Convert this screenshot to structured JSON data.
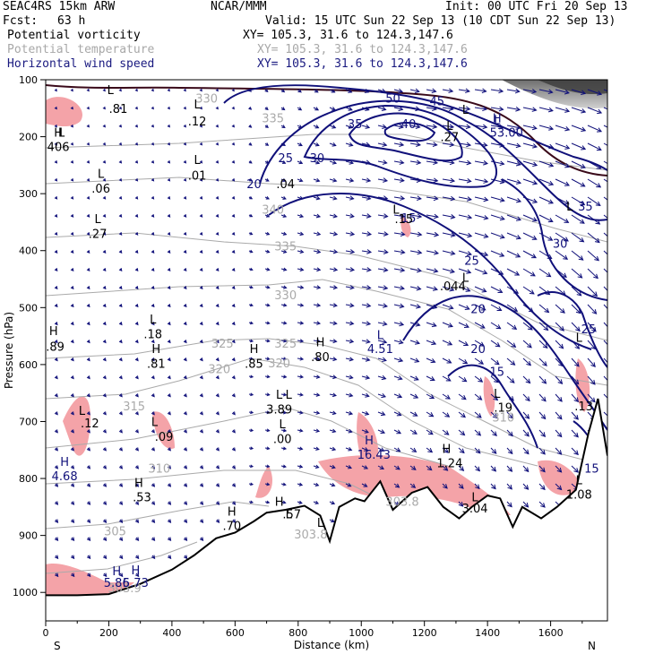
{
  "header": {
    "model": "SEAC4RS 15km ARW",
    "center": "NCAR/MMM",
    "init": "Init: 00 UTC Fri 20 Sep 13",
    "fcst_label": "Fcst:",
    "fcst_value": "63 h",
    "valid": "Valid: 15 UTC Sun 22 Sep 13 (10 CDT Sun 22 Sep 13)",
    "fields": [
      {
        "name": "Potential vorticity",
        "xy": "XY= 105.3, 31.6 to 124.3,147.6",
        "color": "#000000"
      },
      {
        "name": "Potential temperature",
        "xy": "XY= 105.3, 31.6 to 124.3,147.6",
        "color": "#a8a8a8"
      },
      {
        "name": "Horizontal wind speed",
        "xy": "XY= 105.3, 31.6 to 124.3,147.6",
        "color": "#1a1a80"
      }
    ]
  },
  "chart_data": {
    "type": "cross-section",
    "xlabel": "Distance (km)",
    "ylabel": "Pressure (hPa)",
    "xlim": [
      0,
      1780
    ],
    "ylim": [
      1050,
      100
    ],
    "x_ticks": [
      "0",
      "200",
      "400",
      "600",
      "800",
      "1000",
      "1200",
      "1400",
      "1600"
    ],
    "y_ticks": [
      "100",
      "200",
      "300",
      "400",
      "500",
      "600",
      "700",
      "800",
      "900",
      "1000"
    ],
    "x_end_labels": {
      "left": "S",
      "right": "N"
    },
    "colors": {
      "theta": "#aaaaaa",
      "wind": "#10107a",
      "pv_fill": "#f4a3a8",
      "terrain": "#000000"
    },
    "terrain": [
      {
        "x": 0,
        "p": 1005
      },
      {
        "x": 100,
        "p": 1005
      },
      {
        "x": 200,
        "p": 1003
      },
      {
        "x": 300,
        "p": 985
      },
      {
        "x": 400,
        "p": 960
      },
      {
        "x": 470,
        "p": 935
      },
      {
        "x": 540,
        "p": 905
      },
      {
        "x": 600,
        "p": 895
      },
      {
        "x": 660,
        "p": 875
      },
      {
        "x": 700,
        "p": 860
      },
      {
        "x": 760,
        "p": 855
      },
      {
        "x": 820,
        "p": 848
      },
      {
        "x": 870,
        "p": 865
      },
      {
        "x": 900,
        "p": 910
      },
      {
        "x": 930,
        "p": 850
      },
      {
        "x": 980,
        "p": 835
      },
      {
        "x": 1010,
        "p": 840
      },
      {
        "x": 1060,
        "p": 805
      },
      {
        "x": 1100,
        "p": 855
      },
      {
        "x": 1160,
        "p": 825
      },
      {
        "x": 1210,
        "p": 815
      },
      {
        "x": 1260,
        "p": 850
      },
      {
        "x": 1310,
        "p": 870
      },
      {
        "x": 1350,
        "p": 850
      },
      {
        "x": 1400,
        "p": 830
      },
      {
        "x": 1440,
        "p": 835
      },
      {
        "x": 1480,
        "p": 885
      },
      {
        "x": 1510,
        "p": 850
      },
      {
        "x": 1570,
        "p": 870
      },
      {
        "x": 1620,
        "p": 850
      },
      {
        "x": 1680,
        "p": 820
      },
      {
        "x": 1720,
        "p": 720
      },
      {
        "x": 1750,
        "p": 660
      },
      {
        "x": 1780,
        "p": 760
      }
    ],
    "theta_labels": [
      {
        "v": "330",
        "x": 510,
        "p": 140
      },
      {
        "v": "335",
        "x": 720,
        "p": 175
      },
      {
        "v": "340",
        "x": 720,
        "p": 335
      },
      {
        "v": "335",
        "x": 760,
        "p": 400
      },
      {
        "v": "330",
        "x": 760,
        "p": 485
      },
      {
        "v": "325",
        "x": 560,
        "p": 570
      },
      {
        "v": "325",
        "x": 760,
        "p": 570
      },
      {
        "v": "320",
        "x": 550,
        "p": 615
      },
      {
        "v": "320",
        "x": 740,
        "p": 605
      },
      {
        "v": "315",
        "x": 280,
        "p": 680
      },
      {
        "v": "310",
        "x": 360,
        "p": 790
      },
      {
        "v": "305",
        "x": 220,
        "p": 900
      },
      {
        "v": "303.8",
        "x": 840,
        "p": 905
      },
      {
        "v": "303.8",
        "x": 1130,
        "p": 848
      },
      {
        "v": "303.9",
        "x": 250,
        "p": 1000
      },
      {
        "v": "310",
        "x": 1450,
        "p": 700
      }
    ],
    "wind_labels": [
      {
        "v": "20",
        "x": 660,
        "p": 290
      },
      {
        "v": "25",
        "x": 760,
        "p": 245
      },
      {
        "v": "30",
        "x": 860,
        "p": 245
      },
      {
        "v": "35",
        "x": 980,
        "p": 185
      },
      {
        "v": "40",
        "x": 1150,
        "p": 185
      },
      {
        "v": "45",
        "x": 1240,
        "p": 145
      },
      {
        "v": "50",
        "x": 1100,
        "p": 140
      },
      {
        "v": "35",
        "x": 1710,
        "p": 330
      },
      {
        "v": "30",
        "x": 1630,
        "p": 395
      },
      {
        "v": "25",
        "x": 1350,
        "p": 425
      },
      {
        "v": "20",
        "x": 1370,
        "p": 510
      },
      {
        "v": "25",
        "x": 1720,
        "p": 545
      },
      {
        "v": "20",
        "x": 1370,
        "p": 580
      },
      {
        "v": "15",
        "x": 1430,
        "p": 620
      },
      {
        "v": "15",
        "x": 1730,
        "p": 790
      },
      {
        "v": "15",
        "x": 1150,
        "p": 350
      }
    ],
    "lh_labels": [
      {
        "t": "L",
        "x": 205,
        "p": 125,
        "c": "#000"
      },
      {
        "t": ".81",
        "x": 230,
        "p": 158,
        "c": "#000"
      },
      {
        "t": "L",
        "x": 480,
        "p": 150,
        "c": "#000"
      },
      {
        "t": ".12",
        "x": 480,
        "p": 180,
        "c": "#000"
      },
      {
        "t": "H",
        "x": 40,
        "p": 200,
        "c": "#000"
      },
      {
        "t": "L",
        "x": 50,
        "p": 200,
        "c": "#000"
      },
      {
        "t": "406",
        "x": 40,
        "p": 225,
        "c": "#000"
      },
      {
        "t": "L",
        "x": 175,
        "p": 272,
        "c": "#000"
      },
      {
        "t": ".06",
        "x": 175,
        "p": 298,
        "c": "#000"
      },
      {
        "t": "L",
        "x": 480,
        "p": 248,
        "c": "#000"
      },
      {
        "t": ".01",
        "x": 480,
        "p": 275,
        "c": "#000"
      },
      {
        "t": "L",
        "x": 165,
        "p": 352,
        "c": "#000"
      },
      {
        "t": ".27",
        "x": 165,
        "p": 378,
        "c": "#000"
      },
      {
        "t": "H",
        "x": 25,
        "p": 548,
        "c": "#000"
      },
      {
        "t": ".89",
        "x": 30,
        "p": 576,
        "c": "#000"
      },
      {
        "t": "L",
        "x": 340,
        "p": 528,
        "c": "#000"
      },
      {
        "t": ".18",
        "x": 340,
        "p": 554,
        "c": "#000"
      },
      {
        "t": "H",
        "x": 350,
        "p": 580,
        "c": "#000"
      },
      {
        "t": ".81",
        "x": 350,
        "p": 606,
        "c": "#000"
      },
      {
        "t": "H",
        "x": 660,
        "p": 580,
        "c": "#000"
      },
      {
        "t": ".85",
        "x": 660,
        "p": 606,
        "c": "#000"
      },
      {
        "t": "H",
        "x": 870,
        "p": 568,
        "c": "#000"
      },
      {
        "t": ".80",
        "x": 870,
        "p": 594,
        "c": "#000"
      },
      {
        "t": "L",
        "x": 1060,
        "p": 555,
        "c": "#10107a"
      },
      {
        "t": "4.51",
        "x": 1060,
        "p": 580,
        "c": "#10107a"
      },
      {
        "t": "L",
        "x": 740,
        "p": 660,
        "c": "#000"
      },
      {
        "t": "3.89",
        "x": 740,
        "p": 686,
        "c": "#000"
      },
      {
        "t": "L",
        "x": 750,
        "p": 712,
        "c": "#000"
      },
      {
        "t": ".00",
        "x": 750,
        "p": 738,
        "c": "#000"
      },
      {
        "t": "L",
        "x": 115,
        "p": 688,
        "c": "#000"
      },
      {
        "t": ".12",
        "x": 140,
        "p": 710,
        "c": "#000"
      },
      {
        "t": "L",
        "x": 345,
        "p": 708,
        "c": "#000"
      },
      {
        "t": ".09",
        "x": 375,
        "p": 734,
        "c": "#000"
      },
      {
        "t": "H",
        "x": 60,
        "p": 778,
        "c": "#10107a"
      },
      {
        "t": "4.68",
        "x": 60,
        "p": 803,
        "c": "#10107a"
      },
      {
        "t": "H",
        "x": 295,
        "p": 815,
        "c": "#000"
      },
      {
        "t": ".53",
        "x": 305,
        "p": 840,
        "c": "#000"
      },
      {
        "t": "H",
        "x": 1025,
        "p": 740,
        "c": "#10107a"
      },
      {
        "t": "16.43",
        "x": 1040,
        "p": 765,
        "c": "#10107a"
      },
      {
        "t": "H",
        "x": 1270,
        "p": 755,
        "c": "#000"
      },
      {
        "t": "1.24",
        "x": 1280,
        "p": 780,
        "c": "#000"
      },
      {
        "t": "L",
        "x": 1430,
        "p": 658,
        "c": "#000"
      },
      {
        "t": ".19",
        "x": 1450,
        "p": 683,
        "c": "#000"
      },
      {
        "t": "H",
        "x": 590,
        "p": 865,
        "c": "#000"
      },
      {
        "t": ".70",
        "x": 590,
        "p": 890,
        "c": "#000"
      },
      {
        "t": "H",
        "x": 740,
        "p": 848,
        "c": "#000"
      },
      {
        "t": "L",
        "x": 770,
        "p": 870,
        "c": "#000"
      },
      {
        "t": ".57",
        "x": 780,
        "p": 870,
        "c": "#000"
      },
      {
        "t": "L",
        "x": 870,
        "p": 885,
        "c": "#000"
      },
      {
        "t": "H",
        "x": 225,
        "p": 970,
        "c": "#10107a"
      },
      {
        "t": "H",
        "x": 285,
        "p": 968,
        "c": "#10107a"
      },
      {
        "t": "5.86",
        "x": 225,
        "p": 990,
        "c": "#10107a"
      },
      {
        "t": "5.73",
        "x": 285,
        "p": 990,
        "c": "#10107a"
      },
      {
        "t": "L",
        "x": 1430,
        "p": 178,
        "c": "#10107a"
      },
      {
        "t": "53.00",
        "x": 1460,
        "p": 200,
        "c": "#10107a"
      },
      {
        "t": "H",
        "x": 1430,
        "p": 175,
        "c": "#10107a"
      },
      {
        "t": "L",
        "x": 1280,
        "p": 188,
        "c": "#000"
      },
      {
        "t": "L",
        "x": 1330,
        "p": 160,
        "c": "#000"
      },
      {
        "t": ".27",
        "x": 1280,
        "p": 208,
        "c": "#000"
      },
      {
        "t": "L",
        "x": 1660,
        "p": 330,
        "c": "#000"
      },
      {
        "t": ".044",
        "x": 1290,
        "p": 470,
        "c": "#000"
      },
      {
        "t": "L",
        "x": 1330,
        "p": 455,
        "c": "#000"
      },
      {
        "t": ".15",
        "x": 1135,
        "p": 352,
        "c": "#000"
      },
      {
        "t": "L",
        "x": 1110,
        "p": 335,
        "c": "#000"
      },
      {
        "t": "L",
        "x": 1690,
        "p": 560,
        "c": "#000"
      },
      {
        "t": ".13",
        "x": 1705,
        "p": 680,
        "c": "#000"
      },
      {
        "t": "L",
        "x": 1690,
        "p": 810,
        "c": "#000"
      },
      {
        "t": "1.08",
        "x": 1690,
        "p": 835,
        "c": "#000"
      },
      {
        "t": "3.04",
        "x": 1360,
        "p": 860,
        "c": "#000"
      },
      {
        "t": "L",
        "x": 1360,
        "p": 840,
        "c": "#000"
      },
      {
        "t": ".04",
        "x": 760,
        "p": 290,
        "c": "#000"
      },
      {
        "t": "L",
        "x": 770,
        "p": 660,
        "c": "#000"
      }
    ]
  }
}
